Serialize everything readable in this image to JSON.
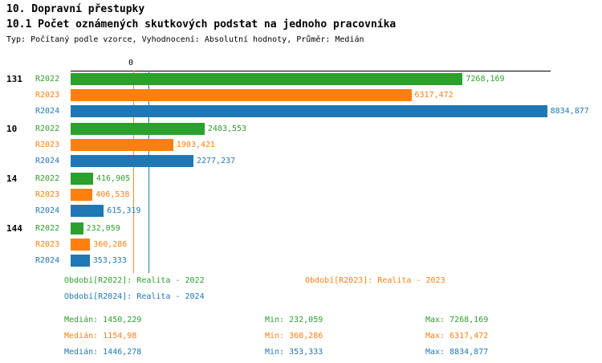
{
  "title": "10. Dopravní přestupky",
  "subtitle": "10.1 Počet oznámených skutkových podstat na jednoho pracovníka",
  "meta_line": "Typ: Počítaný podle vzorce, Vyhodnocení: Absolutní hodnoty, Průměr: Medián",
  "colors": {
    "r2022": "#2ca02c",
    "r2023": "#ff7f0e",
    "r2024": "#1f77b4",
    "axis": "#000000"
  },
  "chart_data": {
    "type": "bar",
    "orientation": "horizontal",
    "title": "10.1 Počet oznámených skutkových podstat na jednoho pracovníka",
    "xlabel": "",
    "ylabel": "",
    "xlim": [
      0,
      8900
    ],
    "axis_origin_label": "0",
    "grid": false,
    "legend_position": "bottom",
    "categories": [
      "131",
      "10",
      "14",
      "144"
    ],
    "series": [
      {
        "name": "R2022",
        "color": "#2ca02c",
        "median": 1450.229,
        "median_label": "1450,229",
        "min": 232.059,
        "min_label": "232,059",
        "max": 7268.169,
        "max_label": "7268,169"
      },
      {
        "name": "R2023",
        "color": "#ff7f0e",
        "median": 1154.98,
        "median_label": "1154,98",
        "min": 360.286,
        "min_label": "360,286",
        "max": 6317.472,
        "max_label": "6317,472"
      },
      {
        "name": "R2024",
        "color": "#1f77b4",
        "median": 1446.278,
        "median_label": "1446,278",
        "min": 353.333,
        "min_label": "353,333",
        "max": 8834.877,
        "max_label": "8834,877"
      }
    ],
    "groups": [
      {
        "label": "131",
        "rows": [
          {
            "series": "R2022",
            "value": 7268.169,
            "display": "7268,169"
          },
          {
            "series": "R2023",
            "value": 6317.472,
            "display": "6317,472"
          },
          {
            "series": "R2024",
            "value": 8834.877,
            "display": "8834,877"
          }
        ]
      },
      {
        "label": "10",
        "rows": [
          {
            "series": "R2022",
            "value": 2483.553,
            "display": "2483,553"
          },
          {
            "series": "R2023",
            "value": 1903.421,
            "display": "1903,421"
          },
          {
            "series": "R2024",
            "value": 2277.237,
            "display": "2277,237"
          }
        ]
      },
      {
        "label": "14",
        "rows": [
          {
            "series": "R2022",
            "value": 416.905,
            "display": "416,905"
          },
          {
            "series": "R2023",
            "value": 406.538,
            "display": "406,538"
          },
          {
            "series": "R2024",
            "value": 615.319,
            "display": "615,319"
          }
        ]
      },
      {
        "label": "144",
        "rows": [
          {
            "series": "R2022",
            "value": 232.059,
            "display": "232,059"
          },
          {
            "series": "R2023",
            "value": 360.286,
            "display": "360,286"
          },
          {
            "series": "R2024",
            "value": 353.333,
            "display": "353,333"
          }
        ]
      }
    ]
  },
  "legend": [
    {
      "series": "R2022",
      "label": "Období[R2022]: Realita - 2022",
      "color": "#2ca02c"
    },
    {
      "series": "R2023",
      "label": "Období[R2023]: Realita - 2023",
      "color": "#ff7f0e"
    },
    {
      "series": "R2024",
      "label": "Období[R2024]: Realita - 2024",
      "color": "#1f77b4"
    }
  ],
  "stats_rows": [
    {
      "series": "R2022",
      "color": "#2ca02c",
      "median_label": "Medián: 1450,229",
      "min_label": "Min: 232,059",
      "max_label": "Max: 7268,169"
    },
    {
      "series": "R2023",
      "color": "#ff7f0e",
      "median_label": "Medián: 1154,98",
      "min_label": "Min: 360,286",
      "max_label": "Max: 6317,472"
    },
    {
      "series": "R2024",
      "color": "#1f77b4",
      "median_label": "Medián: 1446,278",
      "min_label": "Min: 353,333",
      "max_label": "Max: 8834,877"
    }
  ]
}
